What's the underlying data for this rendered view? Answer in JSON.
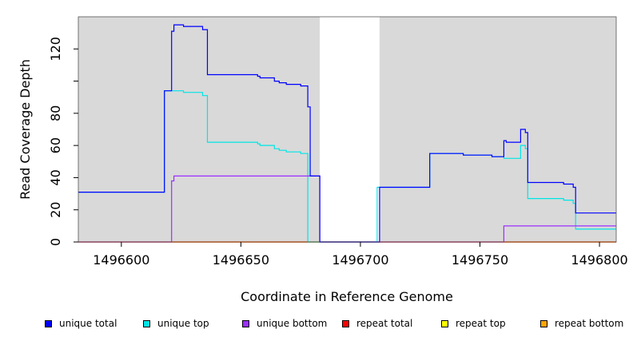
{
  "chart_data": {
    "type": "line",
    "title": "",
    "xlabel": "Coordinate in Reference Genome",
    "ylabel": "Read Coverage Depth",
    "xlim": [
      1496582,
      1496807
    ],
    "ylim": [
      0,
      140
    ],
    "x_ticks": [
      1496600,
      1496650,
      1496700,
      1496750,
      1496800
    ],
    "y_ticks": [
      0,
      20,
      40,
      60,
      80,
      100,
      120
    ],
    "y_tick_labels": [
      "0",
      "20",
      "40",
      "60",
      "80",
      "",
      "120"
    ],
    "grid": false,
    "background_color": "#d9d9d9",
    "highlight_region": {
      "x": [
        1496683,
        1496708
      ],
      "color": "#ffffff"
    },
    "legend_position": "bottom",
    "series": [
      {
        "name": "unique total",
        "color": "#0000ff",
        "points": [
          [
            1496582,
            31
          ],
          [
            1496618,
            31
          ],
          [
            1496618,
            94
          ],
          [
            1496621,
            94
          ],
          [
            1496621,
            131
          ],
          [
            1496622,
            131
          ],
          [
            1496622,
            135
          ],
          [
            1496626,
            135
          ],
          [
            1496626,
            134
          ],
          [
            1496634,
            134
          ],
          [
            1496634,
            132
          ],
          [
            1496636,
            132
          ],
          [
            1496636,
            104
          ],
          [
            1496657,
            104
          ],
          [
            1496657,
            103
          ],
          [
            1496658,
            103
          ],
          [
            1496658,
            102
          ],
          [
            1496664,
            102
          ],
          [
            1496664,
            100
          ],
          [
            1496666,
            100
          ],
          [
            1496666,
            99
          ],
          [
            1496669,
            99
          ],
          [
            1496669,
            98
          ],
          [
            1496675,
            98
          ],
          [
            1496675,
            97
          ],
          [
            1496678,
            97
          ],
          [
            1496678,
            84
          ],
          [
            1496679,
            84
          ],
          [
            1496679,
            41
          ],
          [
            1496683,
            41
          ],
          [
            1496683,
            0
          ],
          [
            1496708,
            0
          ],
          [
            1496708,
            34
          ],
          [
            1496729,
            34
          ],
          [
            1496729,
            55
          ],
          [
            1496743,
            55
          ],
          [
            1496743,
            54
          ],
          [
            1496755,
            54
          ],
          [
            1496755,
            53
          ],
          [
            1496760,
            53
          ],
          [
            1496760,
            63
          ],
          [
            1496761,
            63
          ],
          [
            1496761,
            62
          ],
          [
            1496767,
            62
          ],
          [
            1496767,
            70
          ],
          [
            1496769,
            70
          ],
          [
            1496769,
            68
          ],
          [
            1496770,
            68
          ],
          [
            1496770,
            37
          ],
          [
            1496785,
            37
          ],
          [
            1496785,
            36
          ],
          [
            1496789,
            36
          ],
          [
            1496789,
            34
          ],
          [
            1496790,
            34
          ],
          [
            1496790,
            18
          ],
          [
            1496807,
            18
          ]
        ]
      },
      {
        "name": "unique top",
        "color": "#00e5e5",
        "points": [
          [
            1496582,
            31
          ],
          [
            1496618,
            31
          ],
          [
            1496618,
            94
          ],
          [
            1496626,
            94
          ],
          [
            1496626,
            93
          ],
          [
            1496634,
            93
          ],
          [
            1496634,
            91
          ],
          [
            1496636,
            91
          ],
          [
            1496636,
            62
          ],
          [
            1496657,
            62
          ],
          [
            1496657,
            61
          ],
          [
            1496658,
            61
          ],
          [
            1496658,
            60
          ],
          [
            1496664,
            60
          ],
          [
            1496664,
            58
          ],
          [
            1496666,
            58
          ],
          [
            1496666,
            57
          ],
          [
            1496669,
            57
          ],
          [
            1496669,
            56
          ],
          [
            1496675,
            56
          ],
          [
            1496675,
            55
          ],
          [
            1496678,
            55
          ],
          [
            1496678,
            0
          ],
          [
            1496707,
            0
          ],
          [
            1496707,
            34
          ],
          [
            1496729,
            34
          ],
          [
            1496729,
            55
          ],
          [
            1496743,
            55
          ],
          [
            1496743,
            54
          ],
          [
            1496755,
            54
          ],
          [
            1496755,
            53
          ],
          [
            1496760,
            53
          ],
          [
            1496760,
            52
          ],
          [
            1496767,
            52
          ],
          [
            1496767,
            60
          ],
          [
            1496769,
            60
          ],
          [
            1496769,
            58
          ],
          [
            1496770,
            58
          ],
          [
            1496770,
            27
          ],
          [
            1496785,
            27
          ],
          [
            1496785,
            26
          ],
          [
            1496789,
            26
          ],
          [
            1496789,
            24
          ],
          [
            1496790,
            24
          ],
          [
            1496790,
            8
          ],
          [
            1496807,
            8
          ]
        ]
      },
      {
        "name": "unique bottom",
        "color": "#9b30ff",
        "points": [
          [
            1496582,
            0
          ],
          [
            1496621,
            0
          ],
          [
            1496621,
            38
          ],
          [
            1496622,
            38
          ],
          [
            1496622,
            41
          ],
          [
            1496683,
            41
          ],
          [
            1496683,
            0
          ],
          [
            1496760,
            0
          ],
          [
            1496760,
            10
          ],
          [
            1496807,
            10
          ]
        ]
      },
      {
        "name": "repeat total",
        "color": "#ff0000",
        "points": [
          [
            1496582,
            0
          ],
          [
            1496807,
            0
          ]
        ]
      },
      {
        "name": "repeat top",
        "color": "#ffff00",
        "points": [
          [
            1496582,
            0
          ],
          [
            1496807,
            0
          ]
        ]
      },
      {
        "name": "repeat bottom",
        "color": "#ffa500",
        "points": [
          [
            1496582,
            0
          ],
          [
            1496807,
            0
          ]
        ]
      }
    ]
  },
  "legend": [
    {
      "label": "unique total",
      "color": "#0000ff"
    },
    {
      "label": "unique top",
      "color": "#00e5e5"
    },
    {
      "label": "unique bottom",
      "color": "#9b30ff"
    },
    {
      "label": "repeat total",
      "color": "#ff0000"
    },
    {
      "label": "repeat top",
      "color": "#ffff00"
    },
    {
      "label": "repeat bottom",
      "color": "#ffa500"
    }
  ]
}
